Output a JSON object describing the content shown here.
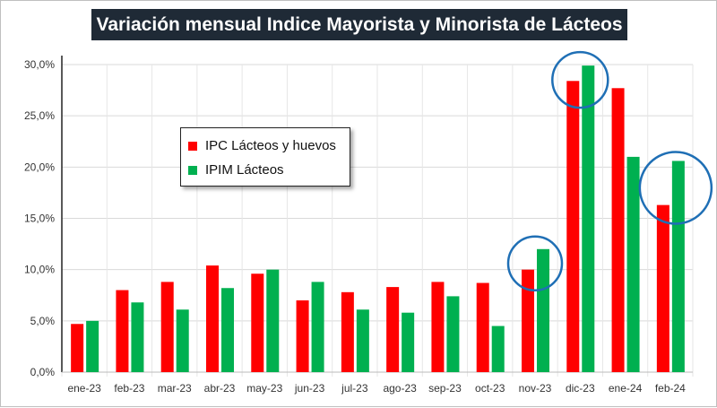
{
  "chart_data": {
    "type": "bar",
    "title": "Variación mensual Indice Mayorista y Minorista de Lácteos",
    "categories": [
      "ene-23",
      "feb-23",
      "mar-23",
      "abr-23",
      "may-23",
      "jun-23",
      "jul-23",
      "ago-23",
      "sep-23",
      "oct-23",
      "nov-23",
      "dic-23",
      "ene-24",
      "feb-24"
    ],
    "series": [
      {
        "name": "IPC Lácteos y huevos",
        "color": "#ff0000",
        "values": [
          4.7,
          8.0,
          8.8,
          10.4,
          9.6,
          7.0,
          7.8,
          8.3,
          8.8,
          8.7,
          10.0,
          28.4,
          27.7,
          16.3
        ]
      },
      {
        "name": "IPIM Lácteos",
        "color": "#00b050",
        "values": [
          5.0,
          6.8,
          6.1,
          8.2,
          10.0,
          8.8,
          6.1,
          5.8,
          7.4,
          4.5,
          12.0,
          29.9,
          21.0,
          20.6
        ]
      }
    ],
    "yticks": [
      "0,0%",
      "5,0%",
      "10,0%",
      "15,0%",
      "20,0%",
      "25,0%",
      "30,0%"
    ],
    "ylim": [
      0,
      30
    ],
    "grid": true,
    "legend_position": "upper-left-center",
    "highlighted_categories": [
      "nov-23",
      "dic-23",
      "feb-24"
    ],
    "highlight_color": "#1f6fb5",
    "xlabel": "",
    "ylabel": ""
  }
}
